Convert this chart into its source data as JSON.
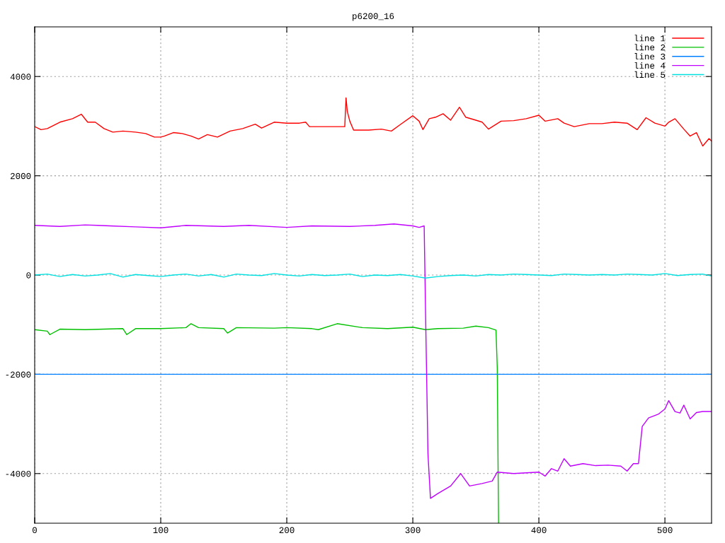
{
  "chart_data": {
    "type": "line",
    "title": "p6200_16",
    "xlim": [
      0,
      537
    ],
    "ylim": [
      -5000,
      5000
    ],
    "xticks": [
      0,
      100,
      200,
      300,
      400,
      500
    ],
    "yticks": [
      -4000,
      -2000,
      0,
      2000,
      4000
    ],
    "grid": true,
    "legend": "top right",
    "series": [
      {
        "name": "line 1",
        "color": "#ff0000",
        "x": [
          0,
          5,
          10,
          20,
          30,
          37,
          42,
          48,
          55,
          62,
          70,
          80,
          88,
          95,
          100,
          103,
          110,
          117,
          124,
          130,
          137,
          145,
          155,
          165,
          175,
          180,
          190,
          200,
          210,
          215,
          218,
          246,
          247,
          248,
          250,
          253,
          265,
          275,
          283,
          290,
          300,
          305,
          308,
          313,
          318,
          324,
          330,
          337,
          342,
          350,
          355,
          360,
          370,
          380,
          390,
          400,
          405,
          415,
          420,
          428,
          440,
          450,
          460,
          470,
          478,
          485,
          492,
          500,
          503,
          508,
          515,
          520,
          525,
          530,
          535,
          537
        ],
        "values": [
          2990,
          2930,
          2950,
          3080,
          3150,
          3240,
          3080,
          3080,
          2950,
          2880,
          2900,
          2880,
          2850,
          2780,
          2780,
          2800,
          2870,
          2850,
          2800,
          2740,
          2830,
          2780,
          2900,
          2950,
          3040,
          2960,
          3080,
          3060,
          3060,
          3080,
          2990,
          2990,
          3570,
          3300,
          3100,
          2920,
          2920,
          2940,
          2900,
          3030,
          3210,
          3100,
          2930,
          3150,
          3180,
          3250,
          3120,
          3380,
          3180,
          3120,
          3080,
          2940,
          3100,
          3110,
          3150,
          3220,
          3100,
          3150,
          3060,
          2990,
          3050,
          3050,
          3080,
          3060,
          2930,
          3170,
          3060,
          3000,
          3080,
          3150,
          2940,
          2800,
          2870,
          2600,
          2750,
          2700
        ]
      },
      {
        "name": "line 2",
        "color": "#00c000",
        "x": [
          0,
          10,
          12,
          20,
          40,
          70,
          73,
          80,
          100,
          120,
          124,
          130,
          150,
          153,
          160,
          190,
          200,
          220,
          225,
          240,
          260,
          280,
          300,
          310,
          320,
          340,
          350,
          360,
          366,
          367,
          368
        ],
        "values": [
          -1100,
          -1130,
          -1200,
          -1090,
          -1100,
          -1080,
          -1200,
          -1080,
          -1080,
          -1060,
          -980,
          -1060,
          -1080,
          -1170,
          -1060,
          -1070,
          -1060,
          -1080,
          -1100,
          -980,
          -1060,
          -1080,
          -1050,
          -1100,
          -1080,
          -1070,
          -1030,
          -1060,
          -1110,
          -1880,
          -5000
        ]
      },
      {
        "name": "line 3",
        "color": "#0080ff",
        "x": [
          0,
          537
        ],
        "values": [
          -2000,
          -2000
        ]
      },
      {
        "name": "line 4",
        "color": "#c000ff",
        "x": [
          0,
          20,
          40,
          50,
          60,
          80,
          100,
          120,
          150,
          170,
          200,
          220,
          250,
          270,
          285,
          300,
          305,
          309,
          310,
          312,
          314,
          320,
          330,
          338,
          345,
          355,
          363,
          367,
          380,
          400,
          405,
          410,
          415,
          420,
          425,
          435,
          445,
          455,
          465,
          470,
          475,
          479,
          482,
          487,
          495,
          500,
          503,
          508,
          512,
          515,
          520,
          525,
          530,
          537
        ],
        "values": [
          1000,
          980,
          1010,
          1000,
          990,
          970,
          950,
          1000,
          980,
          1000,
          960,
          990,
          980,
          1000,
          1030,
          990,
          960,
          990,
          -600,
          -3600,
          -4500,
          -4400,
          -4250,
          -4000,
          -4250,
          -4200,
          -4150,
          -3970,
          -4000,
          -3970,
          -4050,
          -3900,
          -3950,
          -3700,
          -3850,
          -3800,
          -3840,
          -3830,
          -3850,
          -3950,
          -3800,
          -3800,
          -3050,
          -2880,
          -2800,
          -2700,
          -2530,
          -2750,
          -2780,
          -2620,
          -2900,
          -2770,
          -2750,
          -2750
        ]
      },
      {
        "name": "line 5",
        "color": "#00e0e0",
        "x": [
          0,
          10,
          20,
          30,
          40,
          50,
          60,
          70,
          80,
          90,
          100,
          110,
          120,
          130,
          140,
          150,
          160,
          170,
          180,
          190,
          200,
          210,
          220,
          230,
          240,
          250,
          260,
          270,
          280,
          290,
          300,
          310,
          320,
          330,
          340,
          350,
          360,
          370,
          380,
          390,
          400,
          410,
          420,
          430,
          440,
          450,
          460,
          470,
          480,
          490,
          500,
          510,
          520,
          530,
          537
        ],
        "values": [
          0,
          20,
          -30,
          10,
          -20,
          0,
          30,
          -40,
          10,
          -10,
          -30,
          0,
          20,
          -20,
          10,
          -40,
          20,
          0,
          -10,
          30,
          0,
          -20,
          10,
          -10,
          0,
          20,
          -30,
          0,
          -10,
          10,
          -20,
          -60,
          -30,
          -10,
          0,
          -20,
          10,
          0,
          20,
          10,
          0,
          -10,
          20,
          10,
          0,
          10,
          0,
          20,
          10,
          0,
          30,
          -10,
          10,
          20,
          -20
        ]
      }
    ]
  }
}
